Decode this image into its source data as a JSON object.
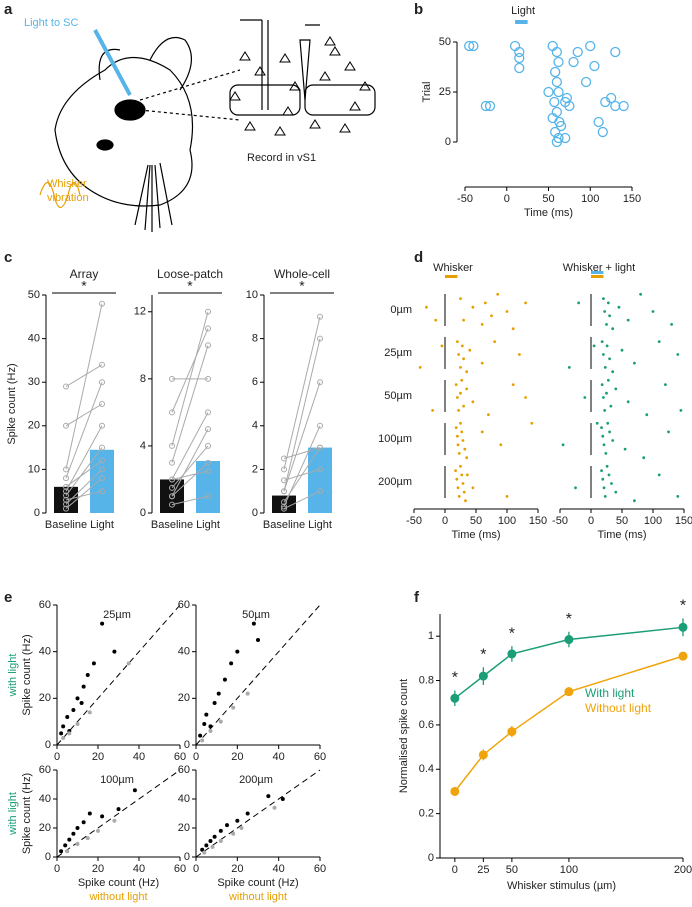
{
  "panel_labels": [
    "a",
    "b",
    "c",
    "d",
    "e",
    "f"
  ],
  "panel_a": {
    "light": "Light to SC",
    "record": "Record in vS1",
    "whisker": [
      "Whisker",
      "vibration"
    ]
  },
  "chart_data": [
    {
      "type": "scatter",
      "annotation": "Light",
      "light_window": [
        10,
        25
      ],
      "xlabel": "Time (ms)",
      "ylabel": "Trial",
      "xlim": [
        -50,
        150
      ],
      "xticks": [
        -50,
        0,
        50,
        100,
        150
      ],
      "ylim": [
        0,
        50
      ],
      "yticks": [
        0,
        25,
        50
      ],
      "color": "#56b4e9",
      "x": [
        -40,
        -45,
        10,
        15,
        -20,
        -25,
        15,
        15,
        55,
        60,
        62,
        58,
        60,
        62,
        57,
        60,
        63,
        58,
        62,
        60,
        65,
        70,
        75,
        72,
        80,
        85,
        95,
        100,
        105,
        110,
        115,
        118,
        125,
        130,
        140,
        130,
        70,
        55,
        50
      ],
      "y": [
        48,
        48,
        48,
        45,
        18,
        18,
        37,
        42,
        48,
        45,
        40,
        35,
        30,
        25,
        20,
        15,
        10,
        5,
        2,
        0,
        8,
        20,
        18,
        22,
        40,
        45,
        30,
        48,
        38,
        10,
        5,
        20,
        22,
        18,
        18,
        45,
        2,
        12,
        25
      ]
    },
    {
      "type": "bar",
      "title": "Array",
      "ylabel": "Spike count (Hz)",
      "significance": "*",
      "categories": [
        "Baseline",
        "Light"
      ],
      "values": [
        6,
        14.5
      ],
      "colors": [
        "#111111",
        "#56b4e9"
      ],
      "pairs": [
        [
          2,
          10
        ],
        [
          5,
          20
        ],
        [
          8,
          30
        ],
        [
          29,
          34
        ],
        [
          10,
          48
        ],
        [
          3,
          5
        ],
        [
          20,
          25
        ],
        [
          6,
          12
        ],
        [
          1,
          8
        ],
        [
          4,
          15
        ]
      ],
      "ylim": [
        0,
        50
      ],
      "yticks": [
        0,
        10,
        20,
        30,
        40,
        50
      ]
    },
    {
      "type": "bar",
      "title": "Loose-patch",
      "significance": "*",
      "categories": [
        "Baseline",
        "Light"
      ],
      "values": [
        2,
        3.1
      ],
      "colors": [
        "#111111",
        "#56b4e9"
      ],
      "pairs": [
        [
          1,
          3
        ],
        [
          2,
          6
        ],
        [
          8,
          8
        ],
        [
          4,
          12
        ],
        [
          3,
          10
        ],
        [
          0.5,
          1
        ],
        [
          1.5,
          4
        ],
        [
          6,
          11
        ],
        [
          2,
          2.5
        ],
        [
          1,
          5
        ]
      ],
      "ylim": [
        0,
        13
      ],
      "yticks": [
        0,
        4,
        8,
        12
      ]
    },
    {
      "type": "bar",
      "title": "Whole-cell",
      "significance": "*",
      "categories": [
        "Baseline",
        "Light"
      ],
      "values": [
        0.8,
        3
      ],
      "colors": [
        "#111111",
        "#56b4e9"
      ],
      "pairs": [
        [
          0.5,
          3
        ],
        [
          2,
          9
        ],
        [
          1,
          6
        ],
        [
          0.2,
          1
        ],
        [
          1.5,
          2
        ],
        [
          0.3,
          4
        ],
        [
          1,
          8
        ],
        [
          2.5,
          3
        ]
      ],
      "ylim": [
        0,
        10
      ],
      "yticks": [
        0,
        2,
        4,
        6,
        8,
        10
      ]
    },
    {
      "type": "raster",
      "row_labels": [
        "0µm",
        "25µm",
        "50µm",
        "100µm",
        "200µm"
      ],
      "xlabel": "Time (ms)",
      "xlim": [
        -50,
        150
      ],
      "xticks": [
        -50,
        0,
        50,
        100,
        150
      ],
      "ylim": [
        0,
        50
      ],
      "stimulus": [
        0,
        20
      ],
      "stimulus_color": "#e69f00",
      "light_color": "#56b4e9",
      "series": [
        {
          "name": "Whisker",
          "color": "#e69f00",
          "x": [
            25,
            30,
            45,
            60,
            65,
            75,
            85,
            100,
            110,
            -30,
            -15,
            130,
            20,
            22,
            25,
            28,
            30,
            35,
            40,
            60,
            80,
            120,
            -40,
            -5,
            18,
            20,
            22,
            25,
            27,
            30,
            35,
            45,
            70,
            110,
            130,
            -20,
            18,
            20,
            21,
            23,
            25,
            27,
            29,
            32,
            35,
            60,
            90,
            140,
            17,
            19,
            21,
            23,
            25,
            27,
            29,
            31,
            33,
            36,
            45,
            100
          ],
          "y": [
            2,
            7,
            4,
            8,
            3,
            6,
            1,
            5,
            9,
            4,
            7,
            3,
            12,
            15,
            18,
            13,
            16,
            19,
            14,
            17,
            12,
            15,
            18,
            13,
            22,
            25,
            28,
            24,
            21,
            27,
            23,
            26,
            29,
            22,
            25,
            28,
            32,
            34,
            36,
            38,
            31,
            33,
            35,
            37,
            39,
            33,
            36,
            31,
            42,
            44,
            46,
            48,
            41,
            43,
            45,
            47,
            49,
            43,
            46,
            48
          ]
        },
        {
          "name": "Whisker + light",
          "color": "#1a9e77",
          "x": [
            20,
            22,
            25,
            28,
            30,
            35,
            45,
            60,
            80,
            100,
            130,
            -20,
            18,
            20,
            23,
            26,
            30,
            35,
            50,
            70,
            110,
            140,
            -35,
            5,
            18,
            20,
            22,
            25,
            28,
            32,
            40,
            60,
            90,
            120,
            -10,
            145,
            17,
            19,
            21,
            24,
            27,
            30,
            35,
            55,
            85,
            125,
            -45,
            10,
            17,
            19,
            21,
            23,
            26,
            29,
            33,
            40,
            70,
            110,
            -25,
            140
          ],
          "y": [
            2,
            5,
            8,
            3,
            6,
            9,
            4,
            7,
            1,
            5,
            8,
            3,
            12,
            15,
            18,
            13,
            16,
            19,
            14,
            17,
            12,
            15,
            18,
            13,
            22,
            25,
            28,
            24,
            21,
            27,
            23,
            26,
            29,
            22,
            25,
            28,
            32,
            34,
            36,
            38,
            31,
            33,
            35,
            37,
            39,
            33,
            36,
            31,
            42,
            44,
            46,
            48,
            41,
            43,
            45,
            47,
            49,
            43,
            46,
            48
          ]
        }
      ]
    },
    {
      "type": "scatter",
      "title": "25µm",
      "ylabel": "Spike count (Hz)",
      "ylabel_note": "with light",
      "ylabel_note_color": "#1a9e77",
      "xlim": [
        0,
        60
      ],
      "xticks": [
        0,
        20,
        40,
        60
      ],
      "ylim": [
        0,
        60
      ],
      "yticks": [
        0,
        20,
        40,
        60
      ],
      "series": [
        {
          "color": "#000000",
          "x": [
            2,
            3,
            5,
            6,
            8,
            10,
            12,
            13,
            15,
            18,
            22,
            28
          ],
          "y": [
            5,
            8,
            12,
            6,
            15,
            20,
            18,
            25,
            30,
            35,
            52,
            40
          ]
        },
        {
          "color": "#aaaaaa",
          "x": [
            3,
            6,
            10,
            16,
            35
          ],
          "y": [
            3,
            5,
            9,
            14,
            35
          ]
        }
      ]
    },
    {
      "type": "scatter",
      "title": "50µm",
      "xlim": [
        0,
        60
      ],
      "xticks": [
        0,
        20,
        40,
        60
      ],
      "ylim": [
        0,
        60
      ],
      "yticks": [
        0,
        20,
        40,
        60
      ],
      "series": [
        {
          "color": "#000000",
          "x": [
            2,
            4,
            5,
            7,
            9,
            11,
            14,
            17,
            20,
            28,
            30
          ],
          "y": [
            4,
            9,
            13,
            8,
            18,
            22,
            28,
            35,
            40,
            52,
            45
          ]
        },
        {
          "color": "#aaaaaa",
          "x": [
            3,
            7,
            12,
            18,
            25
          ],
          "y": [
            2,
            6,
            10,
            16,
            22
          ]
        }
      ]
    },
    {
      "type": "scatter",
      "title": "100µm",
      "ylabel": "Spike count (Hz)",
      "ylabel_note": "with light",
      "ylabel_note_color": "#1a9e77",
      "xlabel": "Spike count (Hz)",
      "xlabel_note": "without light",
      "xlabel_note_color": "#e69f00",
      "xlim": [
        0,
        60
      ],
      "xticks": [
        0,
        20,
        40,
        60
      ],
      "ylim": [
        0,
        60
      ],
      "yticks": [
        0,
        20,
        40,
        60
      ],
      "series": [
        {
          "color": "#000000",
          "x": [
            2,
            4,
            6,
            8,
            10,
            13,
            16,
            22,
            30,
            38
          ],
          "y": [
            4,
            8,
            12,
            16,
            20,
            24,
            30,
            28,
            33,
            46
          ]
        },
        {
          "color": "#aaaaaa",
          "x": [
            5,
            10,
            15,
            20,
            28
          ],
          "y": [
            4,
            9,
            13,
            18,
            25
          ]
        }
      ]
    },
    {
      "type": "scatter",
      "title": "200µm",
      "xlabel": "Spike count (Hz)",
      "xlabel_note": "without light",
      "xlabel_note_color": "#e69f00",
      "xlim": [
        0,
        60
      ],
      "xticks": [
        0,
        20,
        40,
        60
      ],
      "ylim": [
        0,
        60
      ],
      "yticks": [
        0,
        20,
        40,
        60
      ],
      "series": [
        {
          "color": "#000000",
          "x": [
            3,
            5,
            7,
            9,
            12,
            15,
            20,
            25,
            35,
            42
          ],
          "y": [
            5,
            8,
            11,
            14,
            18,
            22,
            25,
            30,
            42,
            40
          ]
        },
        {
          "color": "#aaaaaa",
          "x": [
            4,
            8,
            12,
            18,
            22,
            38
          ],
          "y": [
            3,
            7,
            11,
            16,
            20,
            34
          ]
        }
      ]
    },
    {
      "type": "line",
      "ylabel": "Normalised spike count",
      "xlabel": "Whisker stimulus (µm)",
      "x": [
        0,
        25,
        50,
        100,
        200
      ],
      "xlim": [
        -13,
        200
      ],
      "xticks": [
        0,
        25,
        50,
        100,
        200
      ],
      "ylim": [
        0,
        1.1
      ],
      "yticks": [
        0,
        0.2,
        0.4,
        0.6,
        0.8,
        1
      ],
      "annotations": [
        "*",
        "*",
        "*",
        "*",
        "*"
      ],
      "series": [
        {
          "name": "With light",
          "color": "#1a9e77",
          "values": [
            0.72,
            0.82,
            0.92,
            0.985,
            1.04
          ],
          "errors": [
            0.035,
            0.04,
            0.035,
            0.035,
            0.04
          ]
        },
        {
          "name": "Without light",
          "color": "#f0a30a",
          "values": [
            0.3,
            0.465,
            0.57,
            0.75,
            0.91
          ],
          "errors": [
            0.02,
            0.025,
            0.025,
            0.02,
            0.02
          ]
        }
      ]
    }
  ]
}
